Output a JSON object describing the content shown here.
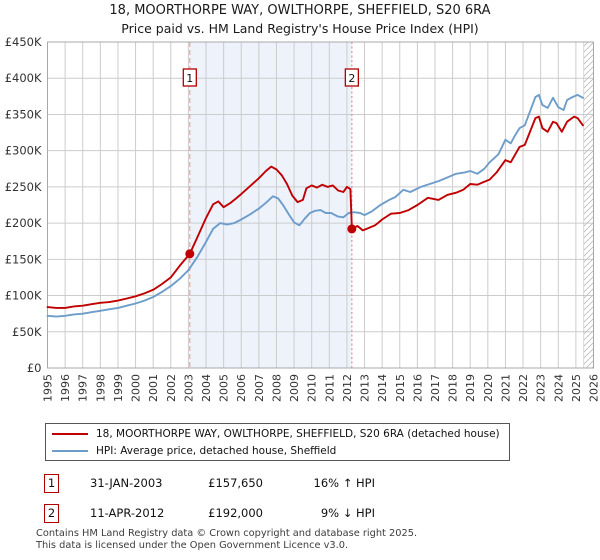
{
  "title": {
    "line1": "18, MOORTHORPE WAY, OWLTHORPE, SHEFFIELD, S20 6RA",
    "line2": "Price paid vs. HM Land Registry's House Price Index (HPI)"
  },
  "colors": {
    "property_line": "#c00000",
    "hpi_line": "#6d9dcb",
    "sale_marker": "#c00000",
    "marker_box_border": "#b00000",
    "dashed_guide": "#e89090",
    "shade_between_sales": "#edf2fb",
    "grid": "#cccccc",
    "plot_border": "#a8a8a8",
    "hatch": "#bdbdbd",
    "axis_text": "#333333"
  },
  "chart_data": {
    "type": "line",
    "title": "18, MOORTHORPE WAY, OWLTHORPE, SHEFFIELD, S20 6RA — Price paid vs. HM Land Registry's House Price Index (HPI)",
    "xlabel": "",
    "ylabel": "",
    "x_ticks": [
      1995,
      1996,
      1997,
      1998,
      1999,
      2000,
      2001,
      2002,
      2003,
      2004,
      2005,
      2006,
      2007,
      2008,
      2009,
      2010,
      2011,
      2012,
      2013,
      2014,
      2015,
      2016,
      2017,
      2018,
      2019,
      2020,
      2021,
      2022,
      2023,
      2024,
      2025,
      2026
    ],
    "y_ticks": [
      {
        "v": 450,
        "label": "£450K"
      },
      {
        "v": 400,
        "label": "£400K"
      },
      {
        "v": 350,
        "label": "£350K"
      },
      {
        "v": 300,
        "label": "£300K"
      },
      {
        "v": 250,
        "label": "£250K"
      },
      {
        "v": 200,
        "label": "£200K"
      },
      {
        "v": 150,
        "label": "£150K"
      },
      {
        "v": 100,
        "label": "£100K"
      },
      {
        "v": 50,
        "label": "£50K"
      },
      {
        "v": 0,
        "label": "£0"
      }
    ],
    "x_range": [
      1995,
      2026
    ],
    "y_range_thousands": [
      0,
      450
    ],
    "grid": true,
    "legend_position": "bottom",
    "shaded_region_years": [
      2003.08,
      2012.28
    ],
    "hatch_after_year": 2025.45,
    "series": [
      {
        "name": "18, MOORTHORPE WAY, OWLTHORPE, SHEFFIELD, S20 6RA (detached house)",
        "color": "#c00000",
        "points": [
          [
            1995.0,
            84
          ],
          [
            1995.5,
            83
          ],
          [
            1996.0,
            83
          ],
          [
            1996.5,
            85
          ],
          [
            1997.0,
            86
          ],
          [
            1997.5,
            88
          ],
          [
            1998.0,
            90
          ],
          [
            1998.5,
            91
          ],
          [
            1999.0,
            93
          ],
          [
            1999.5,
            96
          ],
          [
            2000.0,
            99
          ],
          [
            2000.5,
            103
          ],
          [
            2001.0,
            108
          ],
          [
            2001.5,
            116
          ],
          [
            2002.0,
            125
          ],
          [
            2002.5,
            141
          ],
          [
            2003.08,
            157.65
          ],
          [
            2003.5,
            180
          ],
          [
            2004.0,
            207
          ],
          [
            2004.4,
            226
          ],
          [
            2004.7,
            230
          ],
          [
            2005.0,
            222
          ],
          [
            2005.4,
            228
          ],
          [
            2005.7,
            234
          ],
          [
            2006.0,
            240
          ],
          [
            2006.5,
            251
          ],
          [
            2007.0,
            262
          ],
          [
            2007.4,
            272
          ],
          [
            2007.7,
            278
          ],
          [
            2008.0,
            274
          ],
          [
            2008.3,
            266
          ],
          [
            2008.6,
            254
          ],
          [
            2008.9,
            238
          ],
          [
            2009.2,
            229
          ],
          [
            2009.5,
            232
          ],
          [
            2009.7,
            248
          ],
          [
            2010.0,
            252
          ],
          [
            2010.3,
            249
          ],
          [
            2010.6,
            253
          ],
          [
            2010.9,
            250
          ],
          [
            2011.2,
            252
          ],
          [
            2011.5,
            245
          ],
          [
            2011.8,
            243
          ],
          [
            2012.0,
            250
          ],
          [
            2012.2,
            247
          ],
          [
            2012.28,
            192
          ],
          [
            2012.6,
            196
          ],
          [
            2012.9,
            190
          ],
          [
            2013.2,
            193
          ],
          [
            2013.6,
            197
          ],
          [
            2014.0,
            205
          ],
          [
            2014.5,
            213
          ],
          [
            2015.0,
            214
          ],
          [
            2015.5,
            218
          ],
          [
            2016.0,
            225
          ],
          [
            2016.6,
            235
          ],
          [
            2017.2,
            232
          ],
          [
            2017.7,
            239
          ],
          [
            2018.2,
            242
          ],
          [
            2018.6,
            246
          ],
          [
            2019.0,
            254
          ],
          [
            2019.4,
            253
          ],
          [
            2019.8,
            257
          ],
          [
            2020.1,
            260
          ],
          [
            2020.5,
            270
          ],
          [
            2021.0,
            287
          ],
          [
            2021.3,
            284
          ],
          [
            2021.8,
            305
          ],
          [
            2022.1,
            308
          ],
          [
            2022.7,
            345
          ],
          [
            2022.9,
            347
          ],
          [
            2023.1,
            331
          ],
          [
            2023.4,
            326
          ],
          [
            2023.7,
            340
          ],
          [
            2023.9,
            338
          ],
          [
            2024.2,
            326
          ],
          [
            2024.5,
            340
          ],
          [
            2024.9,
            347
          ],
          [
            2025.1,
            345
          ],
          [
            2025.4,
            335
          ]
        ]
      },
      {
        "name": "HPI: Average price, detached house, Sheffield",
        "color": "#6d9dcb",
        "points": [
          [
            1995.0,
            72
          ],
          [
            1995.5,
            71
          ],
          [
            1996.0,
            72
          ],
          [
            1996.5,
            74
          ],
          [
            1997.0,
            75
          ],
          [
            1997.5,
            77
          ],
          [
            1998.0,
            79
          ],
          [
            1998.5,
            81
          ],
          [
            1999.0,
            83
          ],
          [
            1999.5,
            86
          ],
          [
            2000.0,
            89
          ],
          [
            2000.5,
            93
          ],
          [
            2001.0,
            98
          ],
          [
            2001.5,
            105
          ],
          [
            2002.0,
            113
          ],
          [
            2002.5,
            123
          ],
          [
            2003.0,
            135
          ],
          [
            2003.5,
            153
          ],
          [
            2004.0,
            174
          ],
          [
            2004.4,
            192
          ],
          [
            2004.8,
            200
          ],
          [
            2005.2,
            198
          ],
          [
            2005.6,
            200
          ],
          [
            2006.0,
            205
          ],
          [
            2006.5,
            212
          ],
          [
            2007.0,
            220
          ],
          [
            2007.4,
            228
          ],
          [
            2007.8,
            237
          ],
          [
            2008.1,
            234
          ],
          [
            2008.4,
            224
          ],
          [
            2008.7,
            212
          ],
          [
            2009.0,
            201
          ],
          [
            2009.3,
            197
          ],
          [
            2009.6,
            206
          ],
          [
            2009.9,
            214
          ],
          [
            2010.2,
            217
          ],
          [
            2010.5,
            218
          ],
          [
            2010.8,
            214
          ],
          [
            2011.1,
            214
          ],
          [
            2011.5,
            209
          ],
          [
            2011.8,
            208
          ],
          [
            2012.1,
            214
          ],
          [
            2012.4,
            215
          ],
          [
            2012.75,
            214
          ],
          [
            2013.0,
            211
          ],
          [
            2013.4,
            216
          ],
          [
            2013.9,
            225
          ],
          [
            2014.4,
            232
          ],
          [
            2014.75,
            236
          ],
          [
            2015.2,
            246
          ],
          [
            2015.6,
            243
          ],
          [
            2016.2,
            250
          ],
          [
            2016.7,
            254
          ],
          [
            2017.2,
            258
          ],
          [
            2017.7,
            263
          ],
          [
            2018.2,
            268
          ],
          [
            2018.7,
            270
          ],
          [
            2019.0,
            272
          ],
          [
            2019.4,
            268
          ],
          [
            2019.8,
            275
          ],
          [
            2020.1,
            284
          ],
          [
            2020.6,
            295
          ],
          [
            2021.0,
            315
          ],
          [
            2021.3,
            310
          ],
          [
            2021.5,
            319
          ],
          [
            2021.8,
            331
          ],
          [
            2022.1,
            335
          ],
          [
            2022.7,
            374
          ],
          [
            2022.9,
            377
          ],
          [
            2023.1,
            363
          ],
          [
            2023.4,
            359
          ],
          [
            2023.7,
            373
          ],
          [
            2024.0,
            360
          ],
          [
            2024.3,
            356
          ],
          [
            2024.5,
            370
          ],
          [
            2024.8,
            374
          ],
          [
            2025.1,
            377
          ],
          [
            2025.4,
            373
          ]
        ]
      }
    ],
    "sales": [
      {
        "label": "1",
        "x": 2003.08,
        "value_thousands": 157.65,
        "date": "31-JAN-2003",
        "price": "£157,650",
        "vs_hpi": "16% ↑ HPI"
      },
      {
        "label": "2",
        "x": 2012.28,
        "value_thousands": 192,
        "date": "11-APR-2012",
        "price": "£192,000",
        "vs_hpi": "9% ↓ HPI"
      }
    ]
  },
  "legend": {
    "items": [
      {
        "label": "18, MOORTHORPE WAY, OWLTHORPE, SHEFFIELD, S20 6RA (detached house)",
        "color": "#c00000",
        "thickness": 2.5
      },
      {
        "label": "HPI: Average price, detached house, Sheffield",
        "color": "#6d9dcb",
        "thickness": 2.5
      }
    ]
  },
  "annotations": {
    "rows": [
      {
        "num": "1",
        "date": "31-JAN-2003",
        "price": "£157,650",
        "hpi": "16% ↑ HPI"
      },
      {
        "num": "2",
        "date": "11-APR-2012",
        "price": "£192,000",
        "hpi": "9% ↓ HPI"
      }
    ]
  },
  "footer": {
    "line1": "Contains HM Land Registry data © Crown copyright and database right 2025.",
    "line2": "This data is licensed under the Open Government Licence v3.0."
  }
}
